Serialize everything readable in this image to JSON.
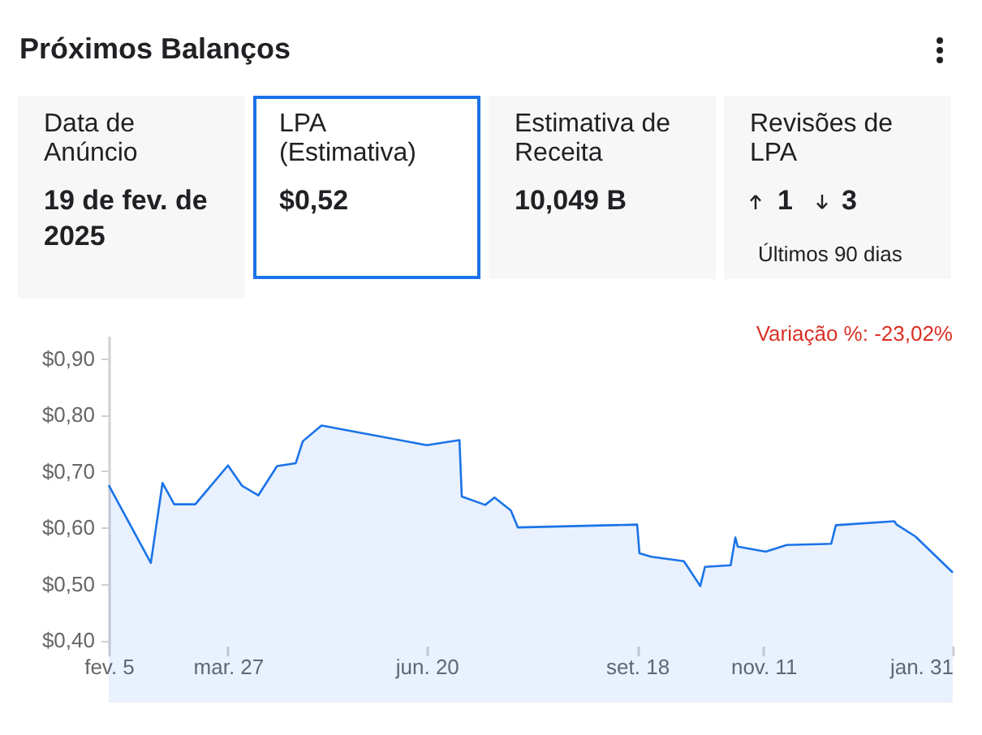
{
  "chart_data": [
    {
      "type": "other",
      "title": "Próximos Balanços",
      "annotations": [
        "Data de Anúncio",
        "19 de fev. de 2025",
        "LPA (Estimativa)",
        "$0,52",
        "Estimativa de Receita",
        "10,049 B",
        "Revisões de LPA",
        "1",
        "3",
        "Últimos 90 dias"
      ]
    },
    {
      "type": "area",
      "x": [
        "2024-02-05",
        "2024-02-23",
        "2024-02-28",
        "2024-03-04",
        "2024-03-13",
        "2024-03-27",
        "2024-04-02",
        "2024-04-09",
        "2024-04-17",
        "2024-04-25",
        "2024-04-28",
        "2024-05-06",
        "2024-06-20",
        "2024-07-04",
        "2024-07-05",
        "2024-07-15",
        "2024-07-19",
        "2024-07-26",
        "2024-07-29",
        "2024-09-18",
        "2024-09-19",
        "2024-09-24",
        "2024-10-08",
        "2024-10-15",
        "2024-10-17",
        "2024-10-28",
        "2024-10-30",
        "2024-10-31",
        "2024-11-12",
        "2024-11-21",
        "2024-12-10",
        "2024-12-12",
        "2025-01-06",
        "2025-01-07",
        "2025-01-15",
        "2025-01-31"
      ],
      "values": [
        0.675,
        0.537,
        0.679,
        0.641,
        0.641,
        0.71,
        0.674,
        0.657,
        0.709,
        0.714,
        0.753,
        0.781,
        0.746,
        0.755,
        0.655,
        0.64,
        0.653,
        0.63,
        0.6,
        0.605,
        0.554,
        0.548,
        0.54,
        0.496,
        0.53,
        0.533,
        0.582,
        0.566,
        0.557,
        0.569,
        0.571,
        0.604,
        0.611,
        0.605,
        0.584,
        0.52
      ],
      "color": "#1a73e8",
      "xlim": [
        "2024-02-05",
        "2025-01-31"
      ],
      "xticks": [
        {
          "value": "2024-02-05",
          "label": "fev. 5"
        },
        {
          "value": "2024-03-27",
          "label": "mar. 27"
        },
        {
          "value": "2024-06-20",
          "label": "jun. 20"
        },
        {
          "value": "2024-09-18",
          "label": "set. 18"
        },
        {
          "value": "2024-11-11",
          "label": "nov. 11"
        },
        {
          "value": "2025-01-31",
          "label": "jan. 31"
        }
      ],
      "ylim": [
        0.39,
        0.94
      ],
      "yticks": [
        {
          "value": 0.4,
          "label": "$0,40"
        },
        {
          "value": 0.5,
          "label": "$0,50"
        },
        {
          "value": 0.6,
          "label": "$0,60"
        },
        {
          "value": 0.7,
          "label": "$0,70"
        },
        {
          "value": 0.8,
          "label": "$0,80"
        },
        {
          "value": 0.9,
          "label": "$0,90"
        }
      ],
      "annotations": [
        "Variação %: -23,02%"
      ]
    }
  ]
}
